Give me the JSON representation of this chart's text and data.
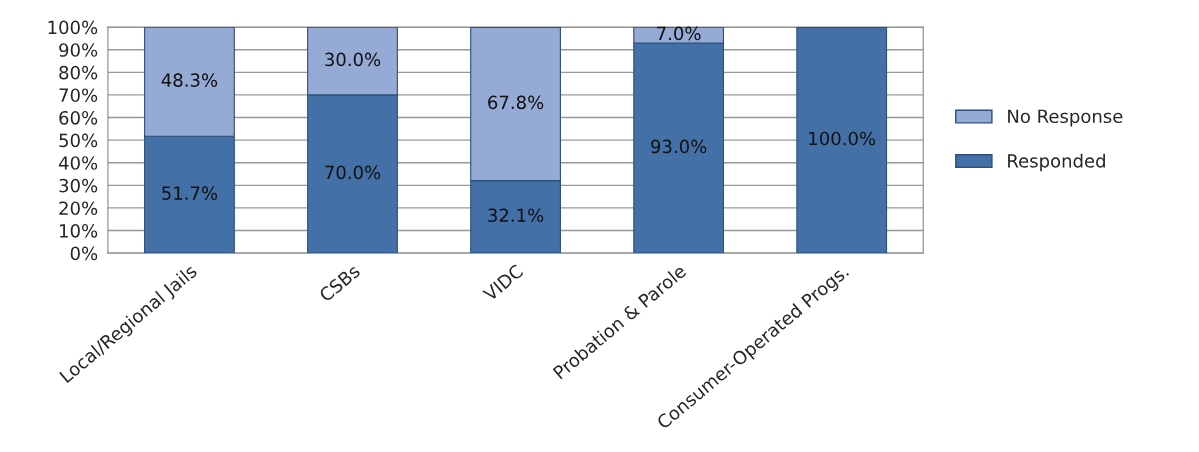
{
  "chart_data": {
    "type": "bar",
    "stacked": true,
    "categories": [
      "Local/Regional Jails",
      "CSBs",
      "VIDC",
      "Probation & Parole",
      "Consumer-Operated Progs."
    ],
    "series": [
      {
        "name": "Responded",
        "color": "#4470a8",
        "values": [
          51.7,
          70.0,
          32.1,
          93.0,
          100.0
        ],
        "value_labels": [
          "51.7%",
          "70.0%",
          "32.1%",
          "93.0%",
          "100.0%"
        ]
      },
      {
        "name": "No Response",
        "color": "#95aad4",
        "values": [
          48.3,
          30.0,
          67.8,
          7.0,
          null
        ],
        "value_labels": [
          "48.3%",
          "30.0%",
          "67.8%",
          "7.0%",
          null
        ]
      }
    ],
    "ylim": [
      0,
      100
    ],
    "yticks": [
      {
        "value": 0,
        "label": "0%"
      },
      {
        "value": 10,
        "label": "10%"
      },
      {
        "value": 20,
        "label": "20%"
      },
      {
        "value": 30,
        "label": "30%"
      },
      {
        "value": 40,
        "label": "40%"
      },
      {
        "value": 50,
        "label": "50%"
      },
      {
        "value": 60,
        "label": "60%"
      },
      {
        "value": 70,
        "label": "70%"
      },
      {
        "value": 80,
        "label": "80%"
      },
      {
        "value": 90,
        "label": "90%"
      },
      {
        "value": 100,
        "label": "100%"
      }
    ],
    "grid": "y",
    "legend": "right"
  }
}
